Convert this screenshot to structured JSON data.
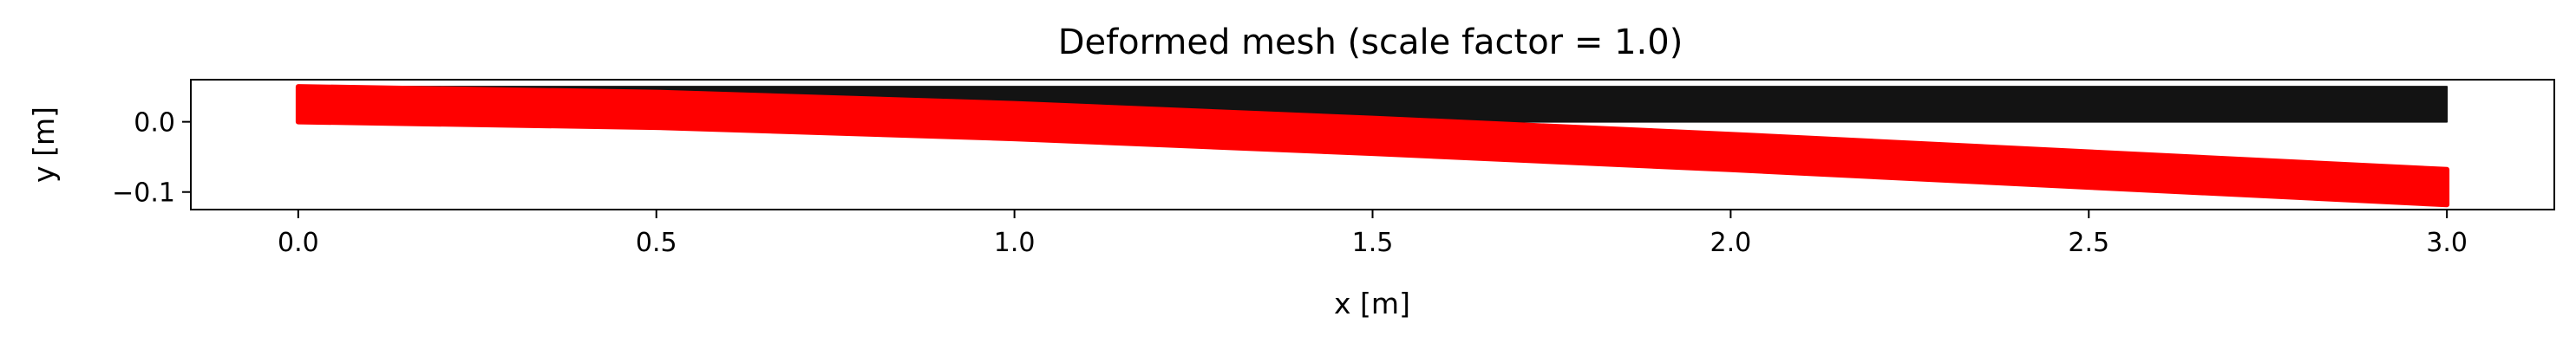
{
  "chart_data": {
    "type": "mesh",
    "title": "Deformed mesh (scale factor = 1.0)",
    "xlabel": "x [m]",
    "ylabel": "y [m]",
    "xlim": [
      -0.15,
      3.15
    ],
    "ylim": [
      -0.125,
      0.06
    ],
    "x_ticks": [
      0.0,
      0.5,
      1.0,
      1.5,
      2.0,
      2.5,
      3.0
    ],
    "x_tick_labels": [
      "0.0",
      "0.5",
      "1.0",
      "1.5",
      "2.0",
      "2.5",
      "3.0"
    ],
    "y_ticks": [
      0.0,
      -0.1
    ],
    "y_tick_labels": [
      "0.0",
      "−0.1"
    ],
    "grid": false,
    "series": [
      {
        "role": "undeformed mesh",
        "color": "#000000",
        "top_edge": {
          "x": [
            0.0,
            3.0
          ],
          "y": [
            0.05,
            0.05
          ]
        },
        "bottom_edge": {
          "x": [
            0.0,
            3.0
          ],
          "y": [
            0.0,
            0.0
          ]
        }
      },
      {
        "role": "deformed mesh",
        "color": "#ff0000",
        "top_edge": {
          "x": [
            0.0,
            0.5,
            1.0,
            1.5,
            2.0,
            2.5,
            3.0
          ],
          "y": [
            0.05,
            0.042,
            0.026,
            0.005,
            -0.018,
            -0.043,
            -0.068
          ]
        },
        "bottom_edge": {
          "x": [
            0.0,
            0.5,
            1.0,
            1.5,
            2.0,
            2.5,
            3.0
          ],
          "y": [
            0.0,
            -0.008,
            -0.024,
            -0.045,
            -0.068,
            -0.093,
            -0.118
          ]
        }
      }
    ]
  }
}
